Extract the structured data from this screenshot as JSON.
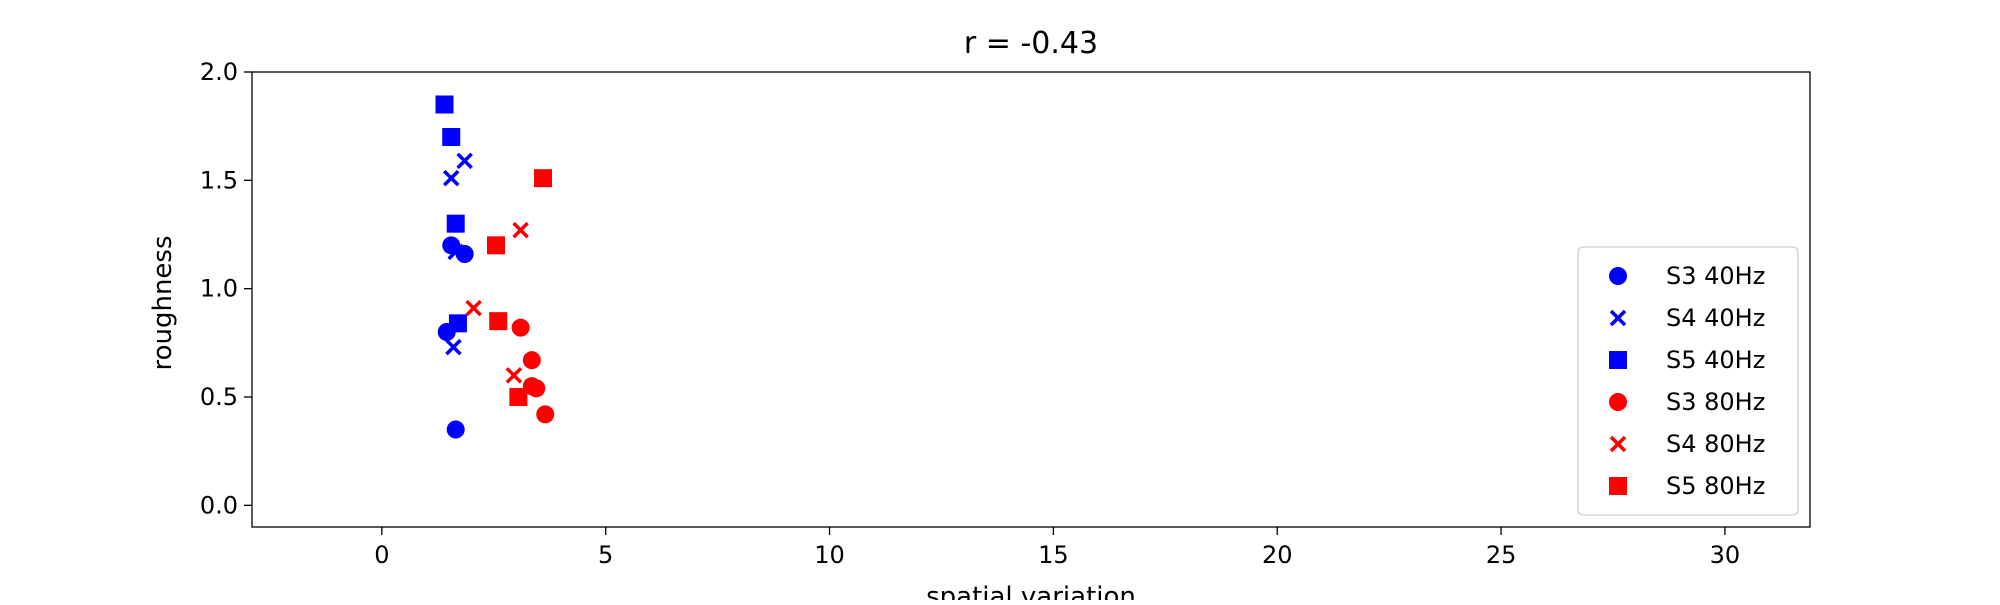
{
  "chart_data": {
    "type": "scatter",
    "title": "r = -0.43",
    "xlabel": "spatial variation",
    "ylabel": "roughness",
    "xlim": [
      -2.9,
      31.9
    ],
    "ylim": [
      -0.1,
      2.0
    ],
    "xticks": [
      0,
      5,
      10,
      15,
      20,
      25,
      30
    ],
    "yticks": [
      0.0,
      0.5,
      1.0,
      1.5,
      2.0
    ],
    "grid": false,
    "legend_position": "lower-right",
    "series": [
      {
        "name": "S3 40Hz",
        "color": "#0000ff",
        "marker": "circle",
        "points": [
          [
            1.55,
            1.2
          ],
          [
            1.85,
            1.16
          ],
          [
            1.45,
            0.8
          ],
          [
            1.65,
            0.35
          ]
        ]
      },
      {
        "name": "S4 40Hz",
        "color": "#0000ff",
        "marker": "x",
        "points": [
          [
            1.55,
            1.51
          ],
          [
            1.85,
            1.59
          ],
          [
            1.6,
            0.73
          ],
          [
            1.65,
            1.17
          ]
        ]
      },
      {
        "name": "S5 40Hz",
        "color": "#0000ff",
        "marker": "square",
        "points": [
          [
            1.4,
            1.85
          ],
          [
            1.55,
            1.7
          ],
          [
            1.65,
            1.3
          ],
          [
            1.7,
            0.84
          ]
        ]
      },
      {
        "name": "S3 80Hz",
        "color": "#ff0000",
        "marker": "circle",
        "points": [
          [
            3.1,
            0.82
          ],
          [
            3.35,
            0.67
          ],
          [
            3.35,
            0.55
          ],
          [
            3.45,
            0.54
          ],
          [
            3.65,
            0.42
          ]
        ]
      },
      {
        "name": "S4 80Hz",
        "color": "#ff0000",
        "marker": "x",
        "points": [
          [
            2.05,
            0.91
          ],
          [
            3.1,
            1.27
          ],
          [
            2.95,
            0.6
          ]
        ]
      },
      {
        "name": "S5 80Hz",
        "color": "#ff0000",
        "marker": "square",
        "points": [
          [
            3.6,
            1.51
          ],
          [
            2.55,
            1.2
          ],
          [
            2.6,
            0.85
          ],
          [
            3.05,
            0.5
          ]
        ]
      }
    ]
  }
}
